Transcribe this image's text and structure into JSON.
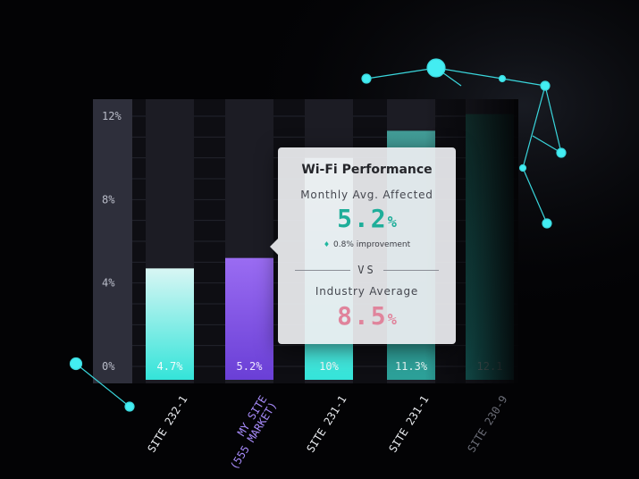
{
  "chart_data": {
    "type": "bar",
    "categories": [
      "SITE 232-1",
      "MY SITE\n(555 MARKET)",
      "SITE 231-1",
      "SITE 231-1",
      "SITE 230-9"
    ],
    "values": [
      4.7,
      5.2,
      10,
      11.3,
      12.1
    ],
    "value_labels": [
      "4.7%",
      "5.2%",
      "10%",
      "11.3%",
      "12.1"
    ],
    "highlight_index": 1,
    "ylim": [
      0,
      12
    ],
    "yticks": [
      "0%",
      "4%",
      "8%",
      "12%"
    ],
    "xlabel": "",
    "ylabel": "",
    "grid": true
  },
  "colors": {
    "background": "#030305",
    "bar_teal_top": "#d8f6f4",
    "bar_teal_bottom": "#34e4d9",
    "bar_purple_top": "#9a6cf2",
    "bar_purple_bottom": "#6a3fd6",
    "axis_panel": "#2e2f3b",
    "node": "#3fe8ee",
    "accent_green": "#20b79f",
    "accent_pink": "#e0849c"
  },
  "tooltip": {
    "title": "Wi-Fi Performance",
    "monthly_label": "Monthly Avg. Affected",
    "monthly_value": "5.2",
    "monthly_unit": "%",
    "improvement": "0.8% improvement",
    "improvement_icon": "up-arrow-icon",
    "vs": "VS",
    "industry_label": "Industry Average",
    "industry_value": "8.5",
    "industry_unit": "%"
  }
}
